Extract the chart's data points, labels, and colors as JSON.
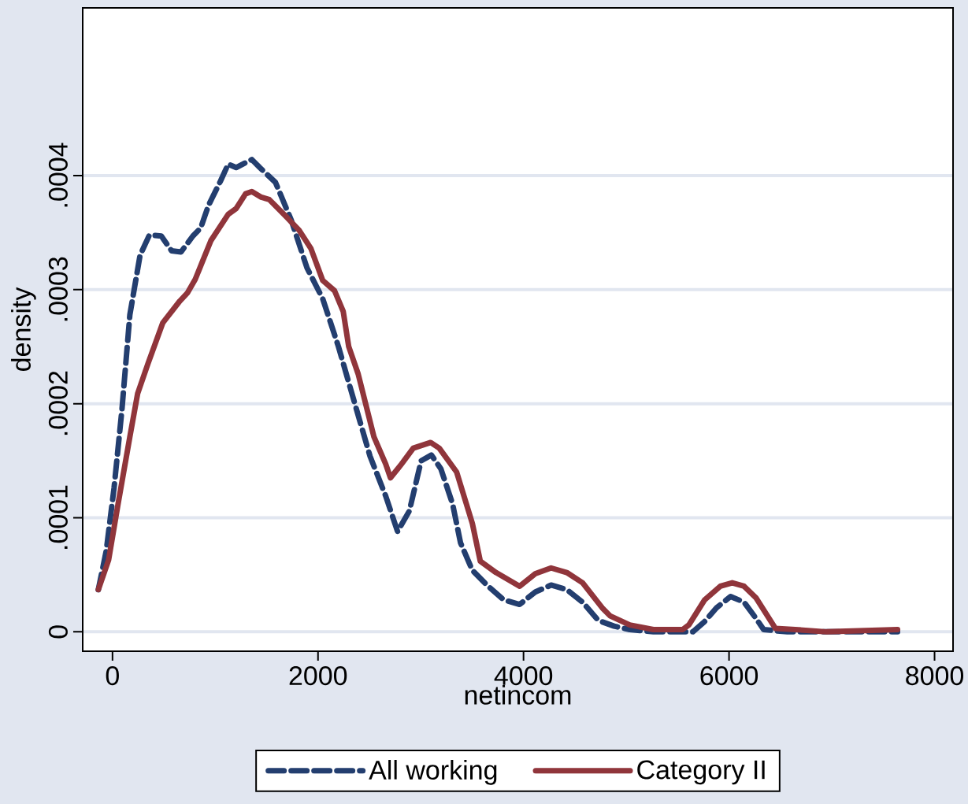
{
  "chart_data": {
    "type": "line",
    "xlabel": "netincom",
    "ylabel": "density",
    "xlim": [
      -290,
      8180
    ],
    "ylim": [
      -1.7e-05,
      0.000547
    ],
    "xticks": [
      0,
      2000,
      4000,
      6000,
      8000
    ],
    "yticks": [
      0,
      {
        "value": 0.0001,
        "label": ".0001"
      },
      {
        "value": 0.0002,
        "label": ".0002"
      },
      {
        "value": 0.0003,
        "label": ".0003"
      },
      {
        "value": 0.0004,
        "label": ".0004"
      }
    ],
    "grid": "y",
    "legend": "bottom",
    "series": [
      {
        "name": "All working",
        "color": "#233e6f",
        "line_style": "dashed",
        "x": [
          -138,
          -61,
          15,
          92,
          169,
          268,
          360,
          475,
          575,
          667,
          782,
          858,
          935,
          1050,
          1126,
          1203,
          1356,
          1433,
          1586,
          1739,
          1893,
          2046,
          2199,
          2352,
          2506,
          2659,
          2774,
          2889,
          3004,
          3103,
          3195,
          3310,
          3387,
          3502,
          3655,
          3808,
          3962,
          4115,
          4268,
          4421,
          4575,
          4728,
          4881,
          5034,
          5264,
          5648,
          5762,
          5877,
          6015,
          6146,
          6261,
          6337,
          6567,
          7640
        ],
        "values": [
          3.7e-05,
          7.1e-05,
          0.000126,
          0.000195,
          0.000278,
          0.00033,
          0.000348,
          0.000347,
          0.000334,
          0.000333,
          0.000347,
          0.000354,
          0.000374,
          0.000395,
          0.00041,
          0.000407,
          0.000414,
          0.000407,
          0.000394,
          0.000361,
          0.000319,
          0.000292,
          0.00025,
          0.000202,
          0.000154,
          0.000119,
          8.8e-05,
          0.000106,
          0.00015,
          0.000155,
          0.000143,
          0.000112,
          7.8e-05,
          5.4e-05,
          4e-05,
          2.8e-05,
          2.4e-05,
          3.5e-05,
          4.1e-05,
          3.7e-05,
          2.6e-05,
          1e-05,
          5e-06,
          2e-06,
          0,
          0,
          9e-06,
          2.1e-05,
          3.1e-05,
          2.6e-05,
          1.2e-05,
          2e-06,
          0,
          0
        ]
      },
      {
        "name": "Category II",
        "color": "#90353b",
        "line_style": "solid",
        "x": [
          -138,
          -38,
          54,
          169,
          245,
          345,
          490,
          655,
          728,
          805,
          958,
          1126,
          1203,
          1295,
          1356,
          1448,
          1525,
          1701,
          1816,
          1931,
          2046,
          2161,
          2245,
          2299,
          2391,
          2544,
          2659,
          2705,
          2812,
          2927,
          3096,
          3180,
          3349,
          3502,
          3579,
          3732,
          3962,
          4115,
          4268,
          4421,
          4575,
          4766,
          4843,
          5034,
          5264,
          5548,
          5609,
          5762,
          5916,
          6031,
          6146,
          6261,
          6452,
          6644,
          6950,
          7640
        ],
        "values": [
          3.7e-05,
          6.3e-05,
          0.000112,
          0.000171,
          0.000209,
          0.000235,
          0.000271,
          0.00029,
          0.000297,
          0.000309,
          0.000343,
          0.000366,
          0.000371,
          0.000384,
          0.000386,
          0.000381,
          0.000379,
          0.000363,
          0.000352,
          0.000336,
          0.000308,
          0.000299,
          0.000281,
          0.00025,
          0.000226,
          0.000171,
          0.000147,
          0.000135,
          0.000147,
          0.000161,
          0.000166,
          0.000161,
          0.00014,
          9.5e-05,
          6.2e-05,
          5.2e-05,
          4e-05,
          5.1e-05,
          5.6e-05,
          5.2e-05,
          4.3e-05,
          2.1e-05,
          1.4e-05,
          6e-06,
          2e-06,
          2e-06,
          6e-06,
          2.8e-05,
          4e-05,
          4.3e-05,
          4e-05,
          3e-05,
          3e-06,
          2e-06,
          0,
          2e-06
        ]
      }
    ]
  }
}
